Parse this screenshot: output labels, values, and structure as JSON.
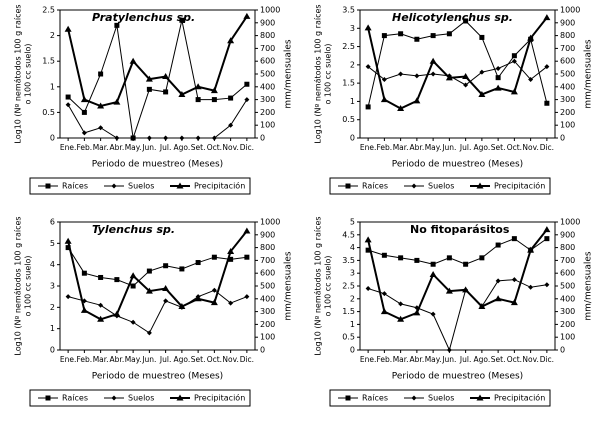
{
  "chart_data": [
    {
      "type": "line",
      "title": "Pratylenchus sp.",
      "italic": true,
      "categories": [
        "Ene.",
        "Feb.",
        "Mar.",
        "Abr.",
        "May.",
        "Jun.",
        "Jul.",
        "Ago.",
        "Set.",
        "Oct.",
        "Nov.",
        "Dic."
      ],
      "xlabel": "Periodo de muestreo (Meses)",
      "ylabel": [
        "Log10 (Nº nemátodos 100 g raíces",
        "o 100 cc suelo)"
      ],
      "y2label": "mm/mensuales",
      "ylim": [
        0,
        2.5
      ],
      "yticks": [
        0,
        0.5,
        1,
        1.5,
        2,
        2.5
      ],
      "y2lim": [
        0,
        1000
      ],
      "y2ticks": [
        0,
        100,
        200,
        300,
        400,
        500,
        600,
        700,
        800,
        900,
        1000
      ],
      "series": [
        {
          "name": "Raíces",
          "color": "#000000",
          "marker": "square",
          "values": [
            0.8,
            0.5,
            1.25,
            2.2,
            0,
            0.95,
            0.9,
            2.3,
            0.75,
            0.75,
            0.78,
            1.05
          ]
        },
        {
          "name": "Suelos",
          "color": "#000000",
          "marker": "diamond",
          "values": [
            0.65,
            0.1,
            0.2,
            0,
            0,
            0,
            0,
            0,
            0,
            0,
            0.25,
            0.75
          ]
        },
        {
          "name": "Precipitación",
          "color": "#000000",
          "marker": "triangle",
          "axis": "y2",
          "values": [
            850,
            300,
            250,
            280,
            600,
            460,
            480,
            340,
            400,
            370,
            760,
            950
          ]
        }
      ]
    },
    {
      "type": "line",
      "title": "Helicotylenchus sp.",
      "italic": true,
      "categories": [
        "Ene.",
        "Feb.",
        "Mar.",
        "Abr.",
        "May.",
        "Jun.",
        "Jul.",
        "Ago.",
        "Set.",
        "Oct.",
        "Nov.",
        "Dic."
      ],
      "xlabel": "Periodo de muestreo (Meses)",
      "ylabel": [
        "Log10 (Nº nemátodos 100 g raíces",
        "o 100 cc suelo)"
      ],
      "y2label": "mm/mensuales",
      "ylim": [
        0,
        3.5
      ],
      "yticks": [
        0,
        0.5,
        1,
        1.5,
        2,
        2.5,
        3,
        3.5
      ],
      "y2lim": [
        0,
        1000
      ],
      "y2ticks": [
        0,
        100,
        200,
        300,
        400,
        500,
        600,
        700,
        800,
        900,
        1000
      ],
      "series": [
        {
          "name": "Raíces",
          "color": "#000000",
          "marker": "square",
          "values": [
            0.85,
            2.8,
            2.85,
            2.7,
            2.8,
            2.85,
            3.2,
            2.75,
            1.65,
            2.25,
            2.7,
            0.95
          ]
        },
        {
          "name": "Suelos",
          "color": "#000000",
          "marker": "diamond",
          "values": [
            1.95,
            1.6,
            1.75,
            1.7,
            1.75,
            1.7,
            1.45,
            1.8,
            1.9,
            2.1,
            1.6,
            1.95
          ]
        },
        {
          "name": "Precipitación",
          "color": "#000000",
          "marker": "triangle",
          "axis": "y2",
          "values": [
            860,
            300,
            230,
            290,
            600,
            470,
            480,
            340,
            390,
            360,
            780,
            940
          ]
        }
      ]
    },
    {
      "type": "line",
      "title": "Tylenchus sp.",
      "italic": true,
      "categories": [
        "Ene.",
        "Feb.",
        "Mar.",
        "Abr.",
        "May.",
        "Jun.",
        "Jul.",
        "Ago.",
        "Set.",
        "Oct.",
        "Nov.",
        "Dic."
      ],
      "xlabel": "Periodo de muestreo (Meses)",
      "ylabel": [
        "Log10 (Nº nemátodos 100 g raíces",
        "o 100 cc suelo)"
      ],
      "y2label": "mm/mensuales",
      "ylim": [
        0,
        6
      ],
      "yticks": [
        0,
        1,
        2,
        3,
        4,
        5,
        6
      ],
      "y2lim": [
        0,
        1000
      ],
      "y2ticks": [
        0,
        100,
        200,
        300,
        400,
        500,
        600,
        700,
        800,
        900,
        1000
      ],
      "series": [
        {
          "name": "Raíces",
          "color": "#000000",
          "marker": "square",
          "values": [
            4.8,
            3.6,
            3.4,
            3.3,
            3.0,
            3.7,
            3.95,
            3.8,
            4.1,
            4.35,
            4.25,
            4.35
          ]
        },
        {
          "name": "Suelos",
          "color": "#000000",
          "marker": "diamond",
          "values": [
            2.5,
            2.3,
            2.1,
            1.6,
            1.3,
            0.8,
            2.3,
            2.0,
            2.5,
            2.8,
            2.2,
            2.5
          ]
        },
        {
          "name": "Precipitación",
          "color": "#000000",
          "marker": "triangle",
          "axis": "y2",
          "values": [
            850,
            310,
            240,
            280,
            580,
            460,
            480,
            340,
            400,
            370,
            770,
            930
          ]
        }
      ]
    },
    {
      "type": "line",
      "title": "No fitoparásitos",
      "italic": false,
      "categories": [
        "Ene.",
        "Feb.",
        "Mar.",
        "Abr.",
        "May.",
        "Jun.",
        "Jul.",
        "Ago.",
        "Set.",
        "Oct.",
        "Nov.",
        "Dic."
      ],
      "xlabel": "Periodo de muestreo (Meses)",
      "ylabel": [
        "Log10 (Nº nemátodos 100 g raíces",
        "o 100 cc suelo)"
      ],
      "y2label": "mm/mensuales",
      "ylim": [
        0,
        5
      ],
      "yticks": [
        0,
        0.5,
        1,
        1.5,
        2,
        2.5,
        3,
        3.5,
        4,
        4.5,
        5
      ],
      "y2lim": [
        0,
        1000
      ],
      "y2ticks": [
        0,
        100,
        200,
        300,
        400,
        500,
        600,
        700,
        800,
        900,
        1000
      ],
      "series": [
        {
          "name": "Raíces",
          "color": "#000000",
          "marker": "square",
          "values": [
            3.9,
            3.7,
            3.6,
            3.5,
            3.35,
            3.6,
            3.35,
            3.6,
            4.1,
            4.35,
            3.9,
            4.35
          ]
        },
        {
          "name": "Suelos",
          "color": "#000000",
          "marker": "diamond",
          "values": [
            2.4,
            2.2,
            1.8,
            1.65,
            1.4,
            0,
            2.35,
            1.7,
            2.7,
            2.75,
            2.45,
            2.55
          ]
        },
        {
          "name": "Precipitación",
          "color": "#000000",
          "marker": "triangle",
          "axis": "y2",
          "values": [
            860,
            300,
            240,
            290,
            590,
            460,
            470,
            340,
            400,
            370,
            780,
            940
          ]
        }
      ]
    }
  ]
}
